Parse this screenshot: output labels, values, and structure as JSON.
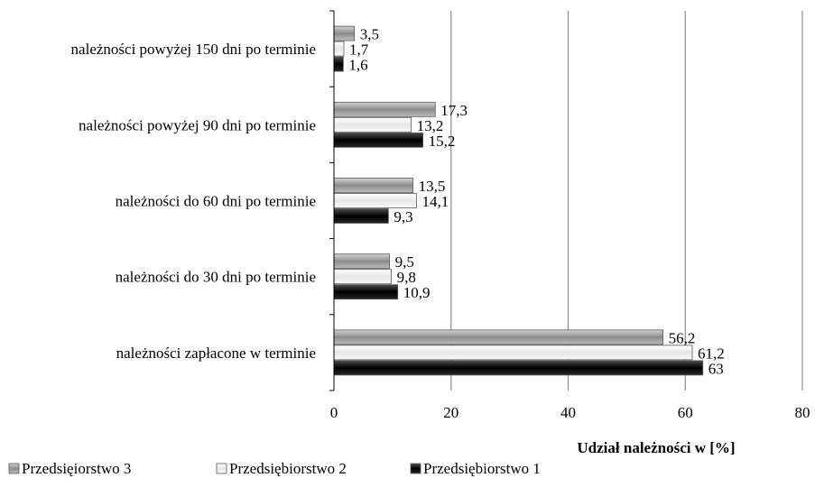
{
  "chart_data": {
    "type": "bar",
    "orientation": "horizontal",
    "categories": [
      "należności powyżej 150 dni po terminie",
      "należności powyżej 90 dni po terminie",
      "należności do 60 dni po terminie",
      "należności do 30 dni po terminie",
      "należności zapłacone w terminie"
    ],
    "series": [
      {
        "name": "Przedsięiorstwo 3",
        "values": [
          3.5,
          17.3,
          13.5,
          9.5,
          56.2
        ],
        "labels": [
          "3,5",
          "17,3",
          "13,5",
          "9,5",
          "56,2"
        ],
        "color": "#a6a6a6"
      },
      {
        "name": "Przedsiębiorstwo 2",
        "values": [
          1.7,
          13.2,
          14.1,
          9.8,
          61.2
        ],
        "labels": [
          "1,7",
          "13,2",
          "14,1",
          "9,8",
          "61,2"
        ],
        "color": "#f2f2f2"
      },
      {
        "name": "Przedsiębiorstwo 1",
        "values": [
          1.6,
          15.2,
          9.3,
          10.9,
          63
        ],
        "labels": [
          "1,6",
          "15,2",
          "9,3",
          "10,9",
          "63"
        ],
        "color": "#1a1a1a"
      }
    ],
    "xticks": [
      0,
      20,
      40,
      60,
      80
    ],
    "xlim": [
      0,
      80
    ],
    "xlabel": "Udział należności w [%]",
    "ylabel": "",
    "title": "",
    "grid": true,
    "legend_position": "bottom"
  }
}
